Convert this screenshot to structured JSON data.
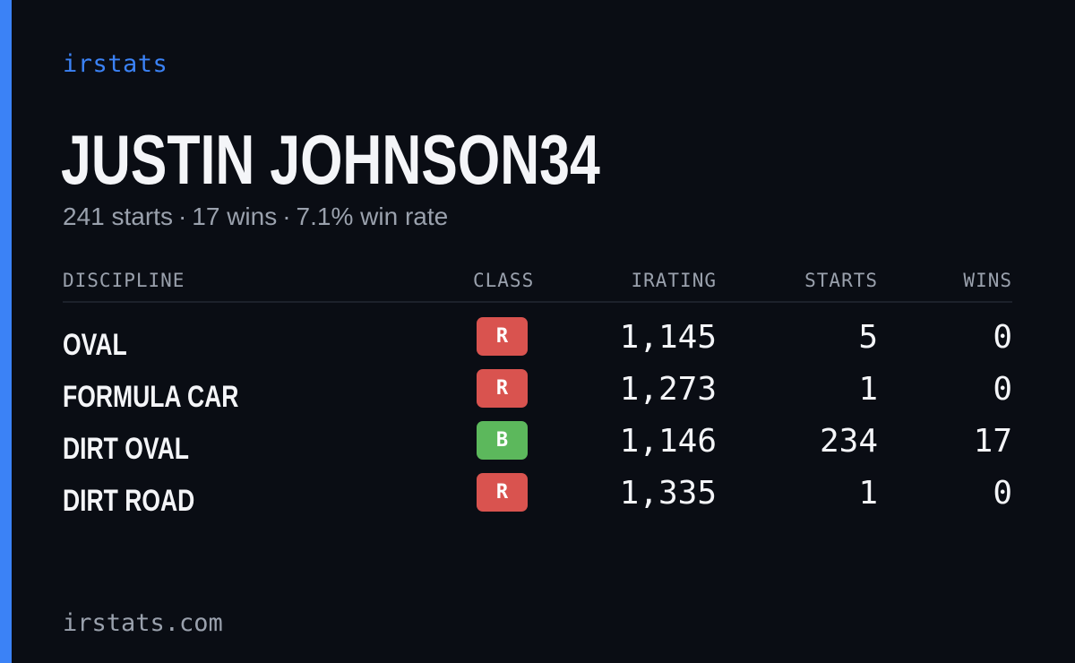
{
  "brand": "irstats",
  "driver": {
    "name": "JUSTIN JOHNSON34"
  },
  "summary": {
    "starts": "241 starts",
    "wins": "17 wins",
    "win_rate": "7.1% win rate",
    "separator": "·"
  },
  "table": {
    "headers": {
      "discipline": "DISCIPLINE",
      "class": "CLASS",
      "irating": "IRATING",
      "starts": "STARTS",
      "wins": "WINS"
    },
    "rows": [
      {
        "discipline": "OVAL",
        "class": "R",
        "irating": "1,145",
        "starts": "5",
        "wins": "0"
      },
      {
        "discipline": "FORMULA CAR",
        "class": "R",
        "irating": "1,273",
        "starts": "1",
        "wins": "0"
      },
      {
        "discipline": "DIRT OVAL",
        "class": "B",
        "irating": "1,146",
        "starts": "234",
        "wins": "17"
      },
      {
        "discipline": "DIRT ROAD",
        "class": "R",
        "irating": "1,335",
        "starts": "1",
        "wins": "0"
      }
    ]
  },
  "colors": {
    "background": "#0a0d14",
    "accent": "#3b82f6",
    "class_R": "#d9534f",
    "class_B": "#5cb85c",
    "muted_text": "#9aa1ad"
  },
  "footer": {
    "site": "irstats.com"
  }
}
